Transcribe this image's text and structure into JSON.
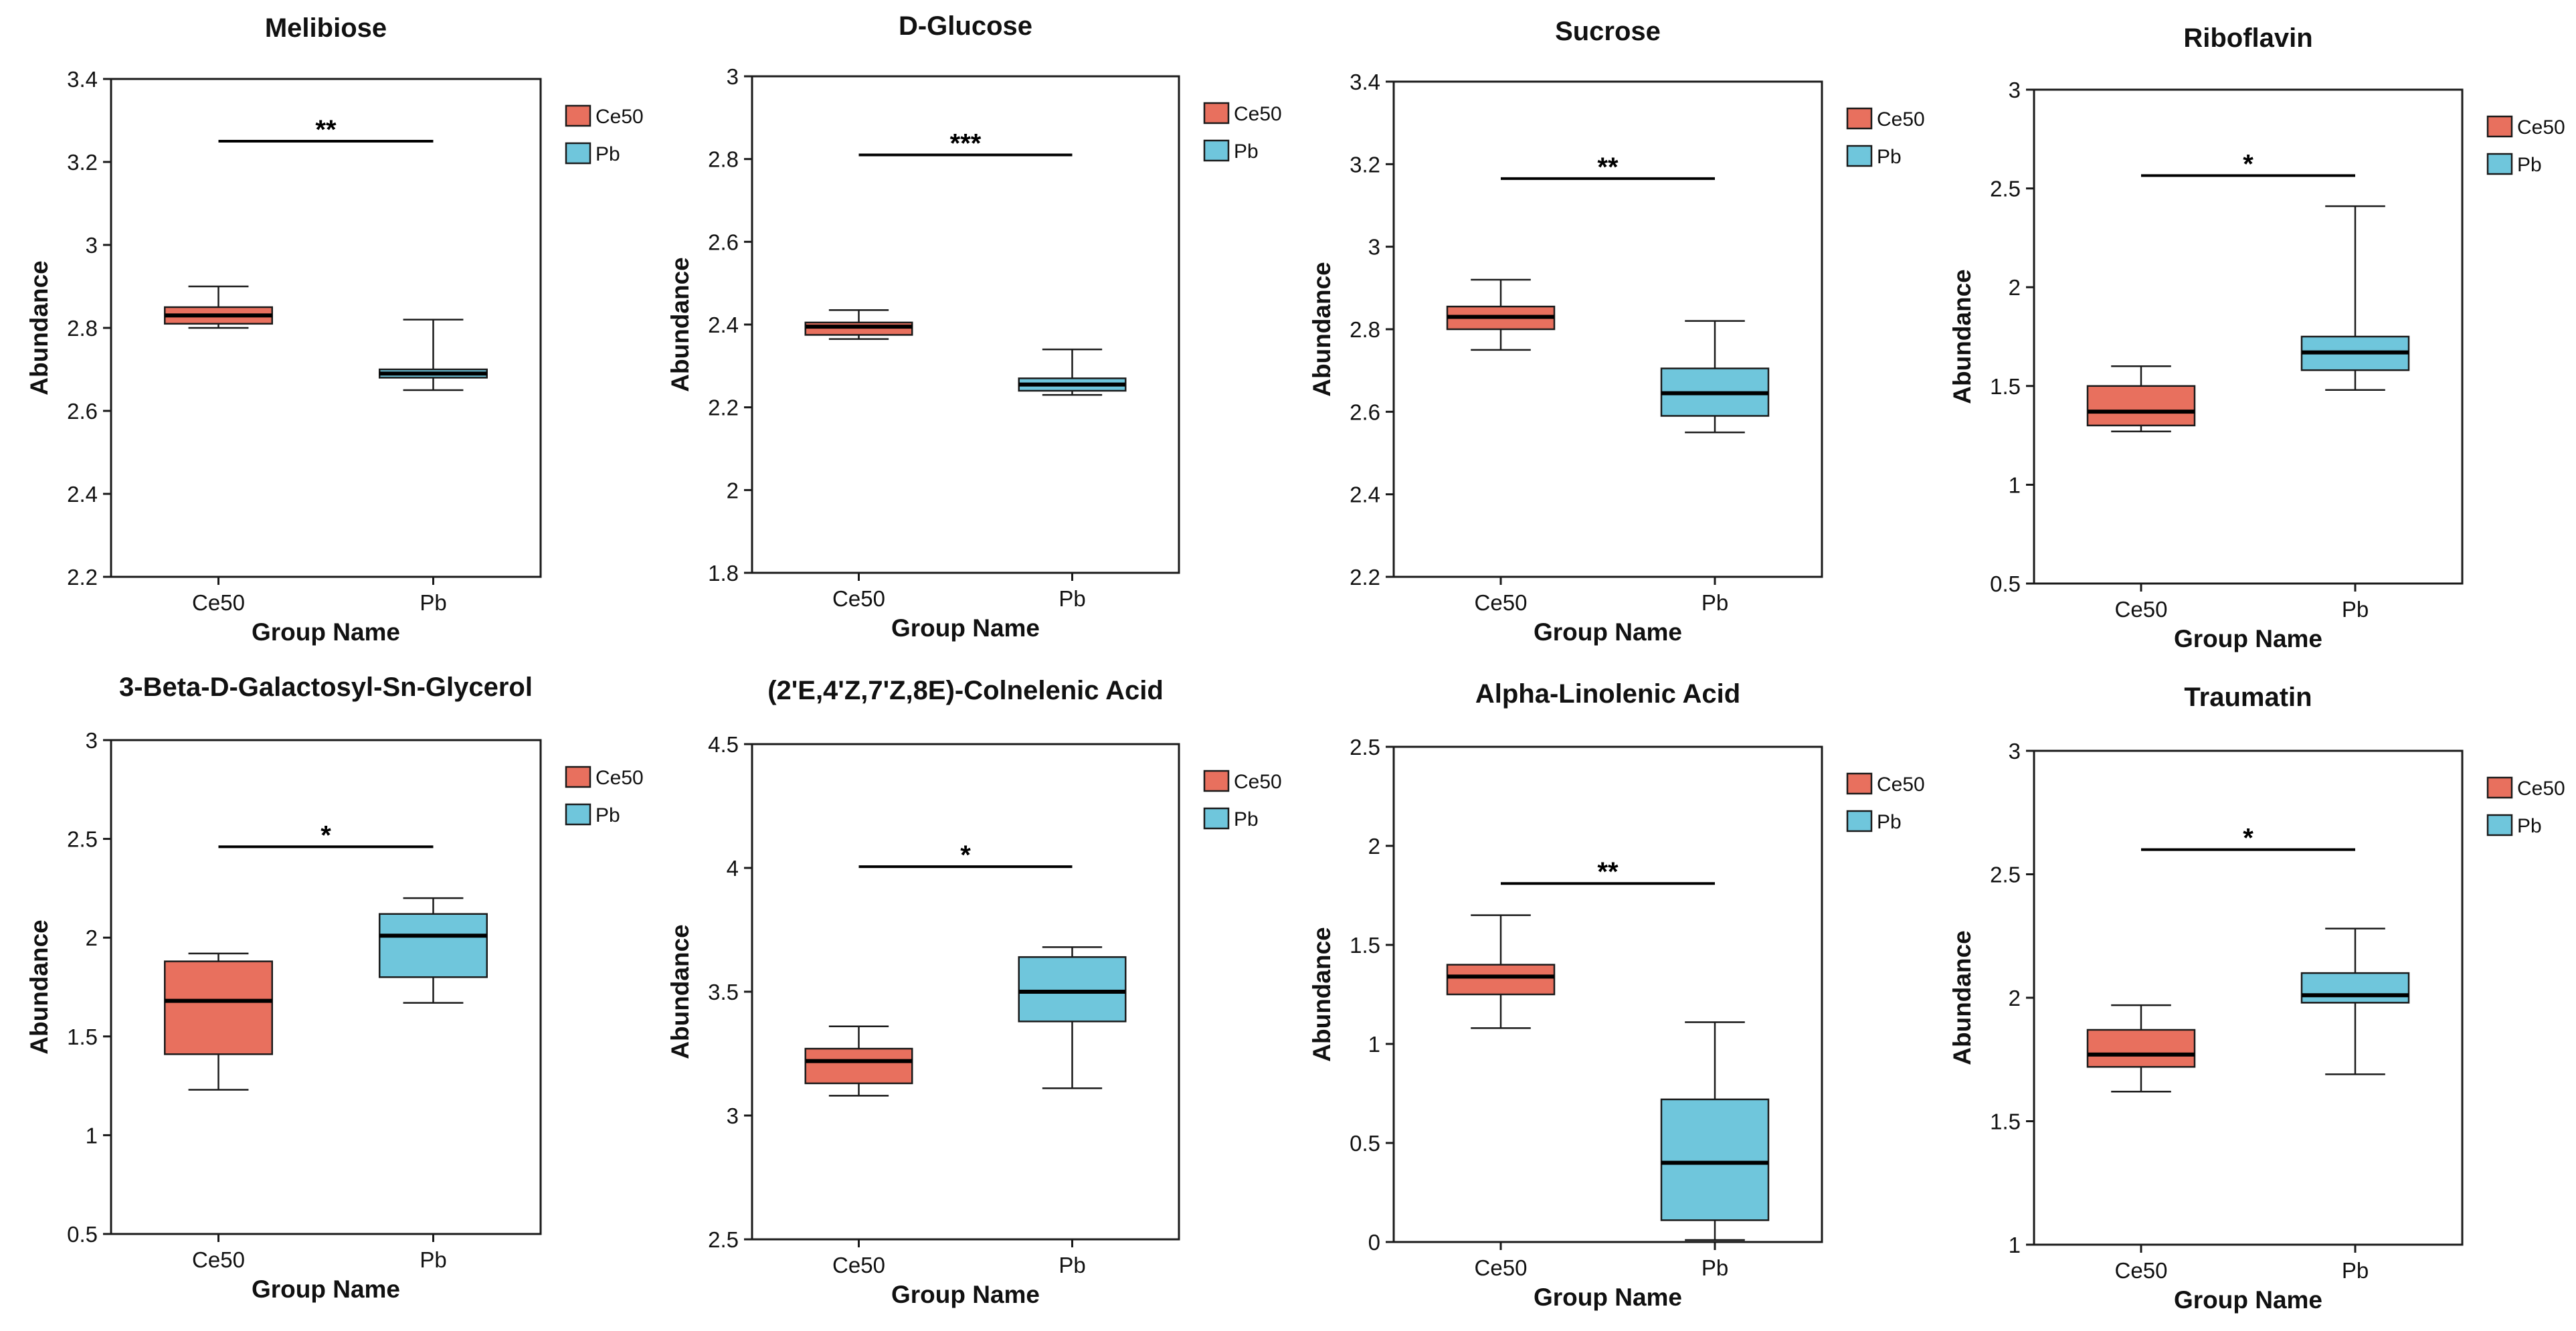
{
  "colors": {
    "ce50_fill": "#e8705e",
    "pb_fill": "#6fc6dc",
    "outline": "#1a1a1a",
    "background": "#ffffff"
  },
  "chart_data": [
    {
      "type": "box",
      "title": "Melibiose",
      "xlabel": "Group Name",
      "ylabel": "Abundance",
      "ylim": [
        2.2,
        3.4
      ],
      "yticks": [
        2.2,
        2.4,
        2.6,
        2.8,
        3,
        3.2,
        3.4
      ],
      "ytick_labels": [
        "2.2",
        "2.4",
        "2.6",
        "2.8",
        "3",
        "3.2",
        "3.4"
      ],
      "categories": [
        "Ce50",
        "Pb"
      ],
      "legend": [
        "Ce50",
        "Pb"
      ],
      "legend_position": "right",
      "boxes": [
        {
          "group": "Ce50",
          "min": 2.8,
          "q1": 2.81,
          "median": 2.83,
          "q3": 2.85,
          "max": 2.9
        },
        {
          "group": "Pb",
          "min": 2.65,
          "q1": 2.68,
          "median": 2.69,
          "q3": 2.7,
          "max": 2.82
        }
      ],
      "significance": {
        "label": "**",
        "y": 3.25
      }
    },
    {
      "type": "box",
      "title": "D-Glucose",
      "xlabel": "Group Name",
      "ylabel": "Abundance",
      "ylim": [
        1.8,
        3.0
      ],
      "yticks": [
        1.8,
        2,
        2.2,
        2.4,
        2.6,
        2.8,
        3
      ],
      "ytick_labels": [
        "1.8",
        "2",
        "2.2",
        "2.4",
        "2.6",
        "2.8",
        "3"
      ],
      "categories": [
        "Ce50",
        "Pb"
      ],
      "legend": [
        "Ce50",
        "Pb"
      ],
      "legend_position": "right",
      "boxes": [
        {
          "group": "Ce50",
          "min": 2.365,
          "q1": 2.375,
          "median": 2.395,
          "q3": 2.405,
          "max": 2.435
        },
        {
          "group": "Pb",
          "min": 2.23,
          "q1": 2.24,
          "median": 2.255,
          "q3": 2.27,
          "max": 2.34
        }
      ],
      "significance": {
        "label": "***",
        "y": 2.81
      }
    },
    {
      "type": "box",
      "title": "Sucrose",
      "xlabel": "Group Name",
      "ylabel": "Abundance",
      "ylim": [
        2.2,
        3.4
      ],
      "yticks": [
        2.2,
        2.4,
        2.6,
        2.8,
        3,
        3.2,
        3.4
      ],
      "ytick_labels": [
        "2.2",
        "2.4",
        "2.6",
        "2.8",
        "3",
        "3.2",
        "3.4"
      ],
      "categories": [
        "Ce50",
        "Pb"
      ],
      "legend": [
        "Ce50",
        "Pb"
      ],
      "legend_position": "right",
      "boxes": [
        {
          "group": "Ce50",
          "min": 2.75,
          "q1": 2.8,
          "median": 2.83,
          "q3": 2.855,
          "max": 2.92
        },
        {
          "group": "Pb",
          "min": 2.55,
          "q1": 2.59,
          "median": 2.645,
          "q3": 2.705,
          "max": 2.82
        }
      ],
      "significance": {
        "label": "**",
        "y": 3.165
      }
    },
    {
      "type": "box",
      "title": "Riboflavin",
      "xlabel": "Group Name",
      "ylabel": "Abundance",
      "ylim": [
        0.5,
        3.0
      ],
      "yticks": [
        0.5,
        1,
        1.5,
        2,
        2.5,
        3
      ],
      "ytick_labels": [
        "0.5",
        "1",
        "1.5",
        "2",
        "2.5",
        "3"
      ],
      "categories": [
        "Ce50",
        "Pb"
      ],
      "legend": [
        "Ce50",
        "Pb"
      ],
      "legend_position": "right",
      "boxes": [
        {
          "group": "Ce50",
          "min": 1.27,
          "q1": 1.3,
          "median": 1.37,
          "q3": 1.5,
          "max": 1.6
        },
        {
          "group": "Pb",
          "min": 1.48,
          "q1": 1.58,
          "median": 1.67,
          "q3": 1.75,
          "max": 2.41
        }
      ],
      "significance": {
        "label": "*",
        "y": 2.565
      }
    },
    {
      "type": "box",
      "title": "3-Beta-D-Galactosyl-Sn-Glycerol",
      "xlabel": "Group Name",
      "ylabel": "Abundance",
      "ylim": [
        0.5,
        3.0
      ],
      "yticks": [
        0.5,
        1,
        1.5,
        2,
        2.5,
        3
      ],
      "ytick_labels": [
        "0.5",
        "1",
        "1.5",
        "2",
        "2.5",
        "3"
      ],
      "categories": [
        "Ce50",
        "Pb"
      ],
      "legend": [
        "Ce50",
        "Pb"
      ],
      "legend_position": "right",
      "boxes": [
        {
          "group": "Ce50",
          "min": 1.23,
          "q1": 1.41,
          "median": 1.68,
          "q3": 1.88,
          "max": 1.92
        },
        {
          "group": "Pb",
          "min": 1.67,
          "q1": 1.8,
          "median": 2.01,
          "q3": 2.12,
          "max": 2.2
        }
      ],
      "significance": {
        "label": "*",
        "y": 2.46
      }
    },
    {
      "type": "box",
      "title": "(2'E,4'Z,7'Z,8E)-Colnelenic Acid",
      "xlabel": "Group Name",
      "ylabel": "Abundance",
      "ylim": [
        2.5,
        4.5
      ],
      "yticks": [
        2.5,
        3,
        3.5,
        4,
        4.5
      ],
      "ytick_labels": [
        "2.5",
        "3",
        "3.5",
        "4",
        "4.5"
      ],
      "categories": [
        "Ce50",
        "Pb"
      ],
      "legend": [
        "Ce50",
        "Pb"
      ],
      "legend_position": "right",
      "boxes": [
        {
          "group": "Ce50",
          "min": 3.08,
          "q1": 3.13,
          "median": 3.22,
          "q3": 3.27,
          "max": 3.36
        },
        {
          "group": "Pb",
          "min": 3.11,
          "q1": 3.38,
          "median": 3.5,
          "q3": 3.64,
          "max": 3.68
        }
      ],
      "significance": {
        "label": "*",
        "y": 4.005
      }
    },
    {
      "type": "box",
      "title": "Alpha-Linolenic Acid",
      "xlabel": "Group Name",
      "ylabel": "Abundance",
      "ylim": [
        0,
        2.5
      ],
      "yticks": [
        0,
        0.5,
        1,
        1.5,
        2,
        2.5
      ],
      "ytick_labels": [
        "0",
        "0.5",
        "1",
        "1.5",
        "2",
        "2.5"
      ],
      "categories": [
        "Ce50",
        "Pb"
      ],
      "legend": [
        "Ce50",
        "Pb"
      ],
      "legend_position": "right",
      "boxes": [
        {
          "group": "Ce50",
          "min": 1.08,
          "q1": 1.25,
          "median": 1.34,
          "q3": 1.4,
          "max": 1.65
        },
        {
          "group": "Pb",
          "min": 0.01,
          "q1": 0.11,
          "median": 0.4,
          "q3": 0.72,
          "max": 1.11
        }
      ],
      "significance": {
        "label": "**",
        "y": 1.81
      }
    },
    {
      "type": "box",
      "title": "Traumatin",
      "xlabel": "Group Name",
      "ylabel": "Abundance",
      "ylim": [
        1.0,
        3.0
      ],
      "yticks": [
        1,
        1.5,
        2,
        2.5,
        3
      ],
      "ytick_labels": [
        "1",
        "1.5",
        "2",
        "2.5",
        "3"
      ],
      "categories": [
        "Ce50",
        "Pb"
      ],
      "legend": [
        "Ce50",
        "Pb"
      ],
      "legend_position": "right",
      "boxes": [
        {
          "group": "Ce50",
          "min": 1.62,
          "q1": 1.72,
          "median": 1.77,
          "q3": 1.87,
          "max": 1.97
        },
        {
          "group": "Pb",
          "min": 1.69,
          "q1": 1.98,
          "median": 2.01,
          "q3": 2.1,
          "max": 2.28
        }
      ],
      "significance": {
        "label": "*",
        "y": 2.6
      }
    }
  ]
}
